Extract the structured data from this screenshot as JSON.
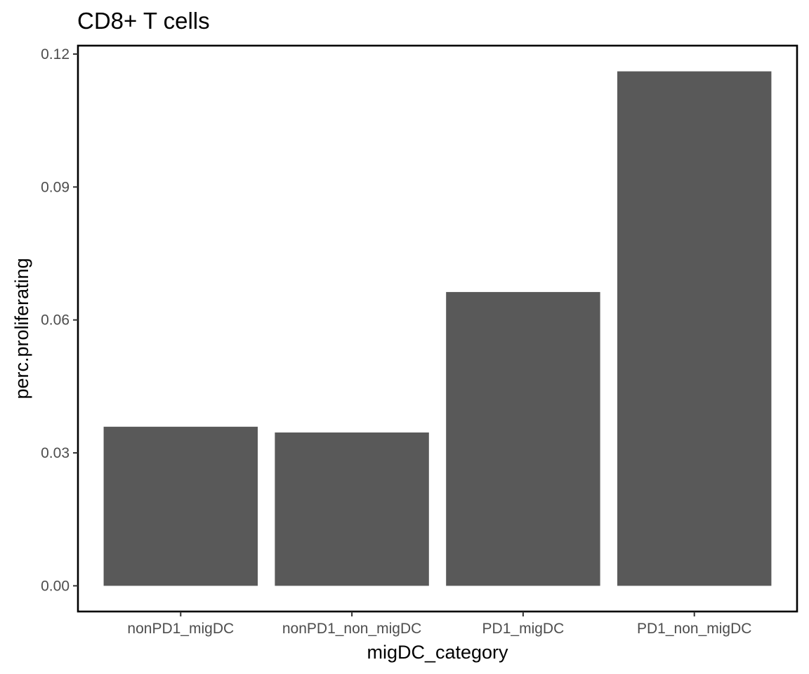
{
  "chart_data": {
    "type": "bar",
    "title": "CD8+ T cells",
    "xlabel": "migDC_category",
    "ylabel": "perc.proliferating",
    "categories": [
      "nonPD1_migDC",
      "nonPD1_non_migDC",
      "PD1_migDC",
      "PD1_non_migDC"
    ],
    "values": [
      0.0359,
      0.0346,
      0.0663,
      0.1161
    ],
    "ylim": [
      -0.0058,
      0.1219
    ],
    "yticks": [
      0.0,
      0.03,
      0.06,
      0.09,
      0.12
    ],
    "ytick_labels": [
      "0.00",
      "0.03",
      "0.06",
      "0.09",
      "0.12"
    ],
    "grid": false,
    "legend": "none",
    "bar_color": "#595959"
  }
}
